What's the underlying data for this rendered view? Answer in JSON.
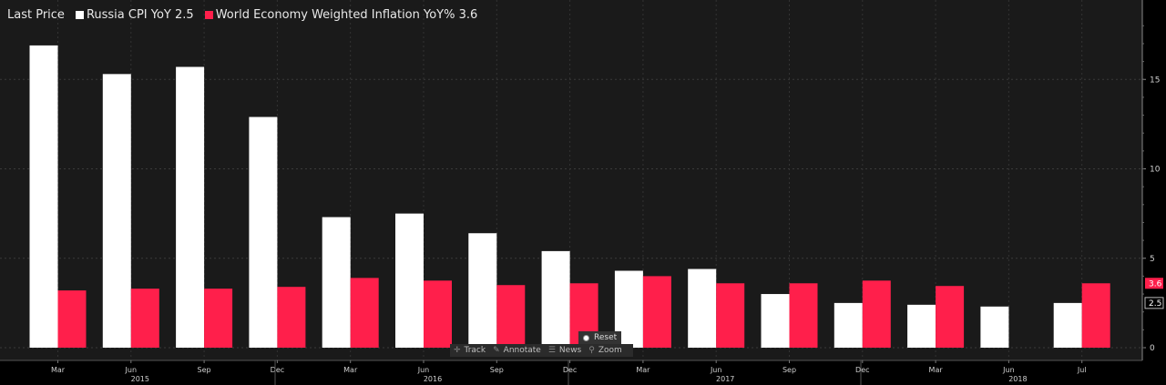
{
  "legend": {
    "prefix": "Last Price",
    "series": [
      {
        "label": "Russia CPI YoY 2.5",
        "color": "#ffffff"
      },
      {
        "label": "World Economy Weighted Inflation YoY% 3.6",
        "color": "#ff1f4b"
      }
    ]
  },
  "toolbar": {
    "reset_label": "Reset",
    "items": [
      {
        "label": "Track",
        "icon": "crosshair-icon"
      },
      {
        "label": "Annotate",
        "icon": "pencil-icon"
      },
      {
        "label": "News",
        "icon": "news-icon"
      },
      {
        "label": "Zoom",
        "icon": "magnifier-icon"
      }
    ]
  },
  "chart_data": {
    "type": "bar",
    "categories": [
      "Mar",
      "Jun",
      "Sep",
      "Dec",
      "Mar",
      "Jun",
      "Sep",
      "Dec",
      "Mar",
      "Jun",
      "Sep",
      "Dec",
      "Mar",
      "Jun",
      "Jul"
    ],
    "year_labels": [
      {
        "index": 1,
        "label": "2015"
      },
      {
        "index": 5,
        "label": "2016"
      },
      {
        "index": 9,
        "label": "2017"
      },
      {
        "index": 13,
        "label": "2018"
      }
    ],
    "series": [
      {
        "name": "Russia CPI YoY",
        "color": "#ffffff",
        "values": [
          16.9,
          15.3,
          15.7,
          12.9,
          7.3,
          7.5,
          6.4,
          5.4,
          4.3,
          4.4,
          3.0,
          2.5,
          2.4,
          2.3,
          2.5
        ]
      },
      {
        "name": "World Economy Weighted Inflation YoY%",
        "color": "#ff1f4b",
        "values": [
          3.2,
          3.3,
          3.3,
          3.4,
          3.9,
          3.75,
          3.5,
          3.6,
          4.0,
          3.6,
          3.6,
          3.75,
          3.45,
          null,
          3.6
        ]
      }
    ],
    "yticks": [
      0,
      5,
      10,
      15
    ],
    "ylim": [
      0,
      18.5
    ],
    "last_values": [
      {
        "label": "3.6",
        "value": 3.6,
        "color": "#ff1f4b"
      },
      {
        "label": "2.5",
        "value": 2.5,
        "color": "#ffffff"
      }
    ],
    "grid": true
  }
}
